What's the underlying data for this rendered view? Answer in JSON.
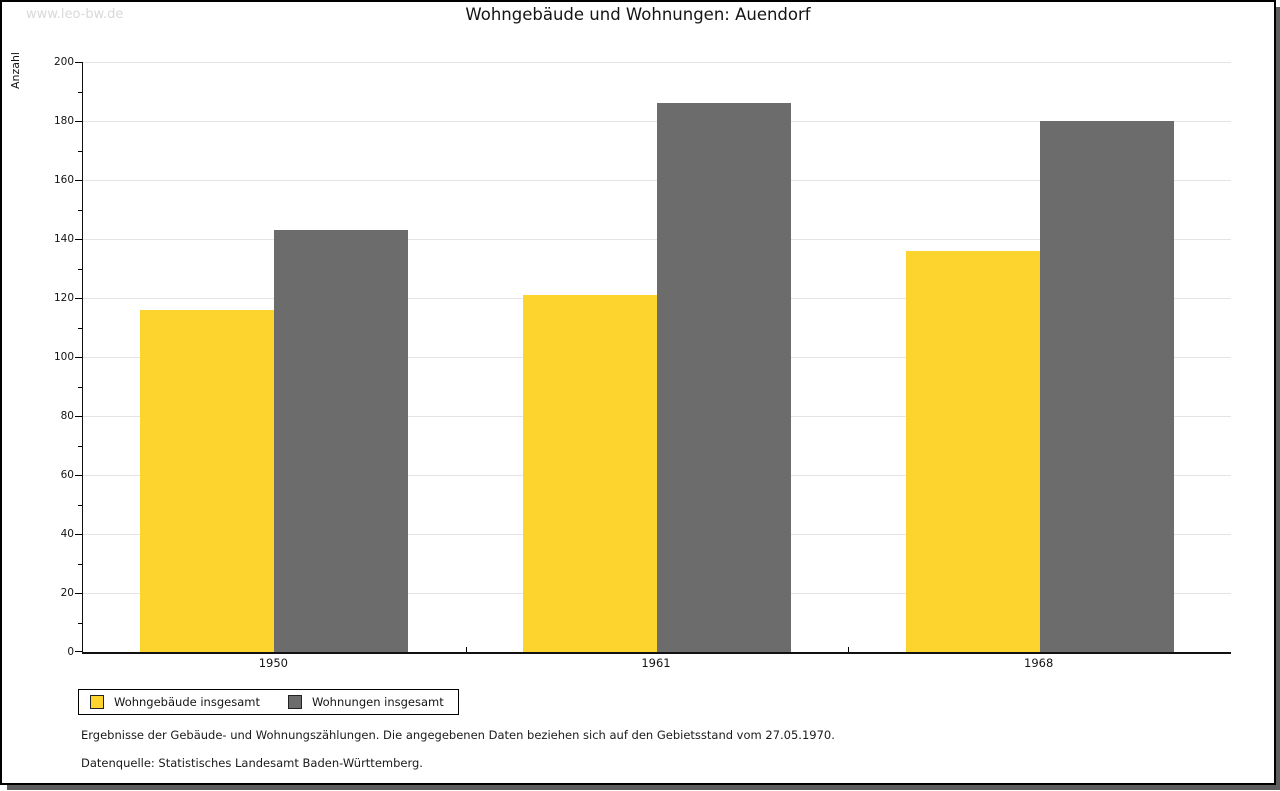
{
  "watermark": "www.leo-bw.de",
  "title": "Wohngebäude und Wohnungen: Auendorf",
  "chart_data": {
    "type": "bar",
    "title": "Wohngebäude und Wohnungen: Auendorf",
    "categories": [
      "1950",
      "1961",
      "1968"
    ],
    "series": [
      {
        "key": "wohngebaeude-insgesamt",
        "name": "Wohngebäude insgesamt",
        "color": "#FCD42D",
        "values": [
          116,
          121,
          136
        ]
      },
      {
        "key": "wohnungen-insgesamt",
        "name": "Wohnungen insgesamt",
        "color": "#6C6C6C",
        "values": [
          143,
          186,
          180
        ]
      }
    ],
    "xlabel": "",
    "ylabel": "Anzahl",
    "ylim": [
      0,
      200
    ],
    "ytick_step": 20,
    "yminor_step": 10,
    "grid": true,
    "legend_position": "bottom-left"
  },
  "footnotes": {
    "line1": "Ergebnisse der Gebäude- und Wohnungszählungen. Die angegebenen Daten beziehen sich auf den Gebietsstand vom 27.05.1970.",
    "line2": "Datenquelle: Statistisches Landesamt Baden-Württemberg."
  },
  "colors": {
    "bar_yellow": "#FCD42D",
    "bar_gray": "#6C6C6C",
    "gridline": "#e4e4e4",
    "frame_shadow": "#5e5e5e",
    "watermark_text": "#d9d9d9"
  }
}
